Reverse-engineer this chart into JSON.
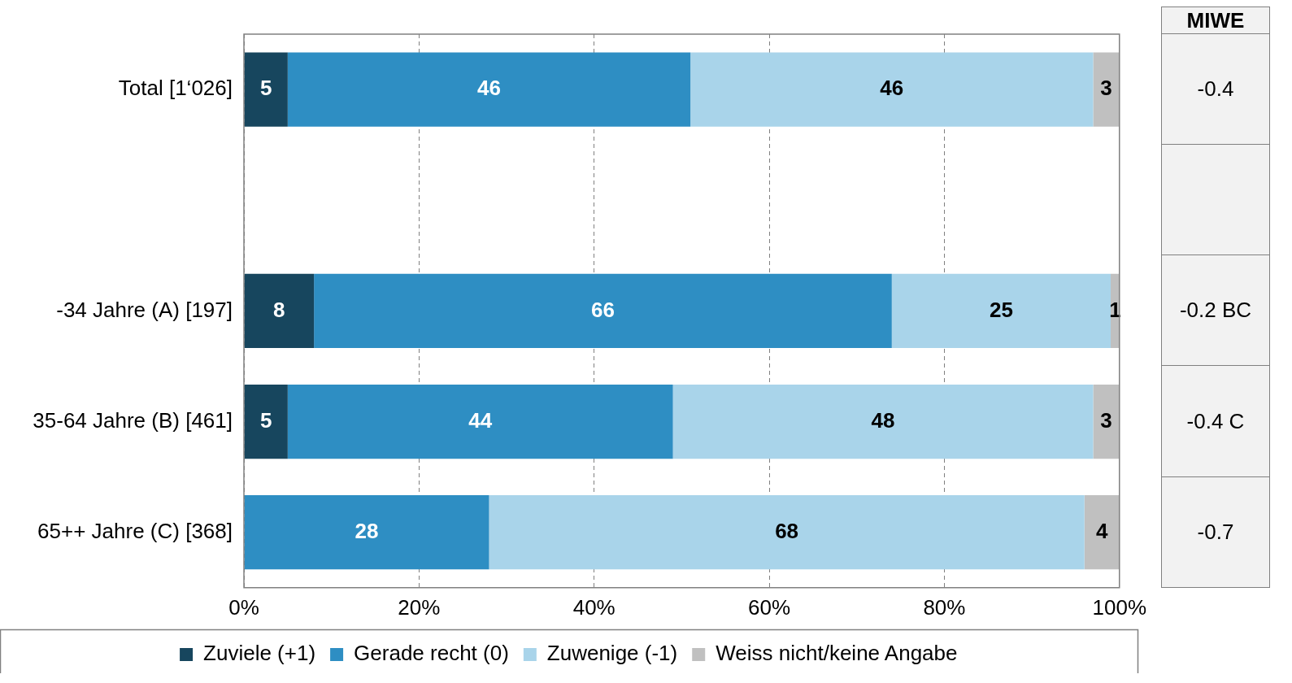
{
  "chart_data": [
    {
      "type": "bar",
      "orientation": "horizontal",
      "stacked": true,
      "categories": [
        "Total [1‘026]",
        null,
        "-34 Jahre (A) [197]",
        "35-64 Jahre (B) [461]",
        "65++ Jahre (C) [368]"
      ],
      "series": [
        {
          "name": "Zuviele (+1)",
          "color": "#17465e",
          "values": [
            5,
            null,
            8,
            5,
            null
          ]
        },
        {
          "name": "Gerade recht (0)",
          "color": "#2e8ec3",
          "values": [
            46,
            null,
            66,
            44,
            28
          ]
        },
        {
          "name": "Zuwenige (-1)",
          "color": "#a9d4ea",
          "values": [
            46,
            null,
            25,
            48,
            68
          ]
        },
        {
          "name": "Weiss nicht/keine Angabe",
          "color": "#c0c0c0",
          "values": [
            3,
            null,
            1,
            3,
            4
          ]
        }
      ],
      "xlim": [
        0,
        100
      ],
      "xticks": [
        {
          "value": 0,
          "label": "0%"
        },
        {
          "value": 20,
          "label": "20%"
        },
        {
          "value": 40,
          "label": "40%"
        },
        {
          "value": 60,
          "label": "60%"
        },
        {
          "value": 80,
          "label": "80%"
        },
        {
          "value": 100,
          "label": "100%"
        }
      ],
      "grid": "x",
      "legend": "bottom",
      "data_labels": true
    },
    {
      "type": "other",
      "title": "MIWE",
      "annotations": [
        "-0.4",
        "-0.2 BC",
        "-0.4 C",
        "-0.7"
      ]
    }
  ]
}
